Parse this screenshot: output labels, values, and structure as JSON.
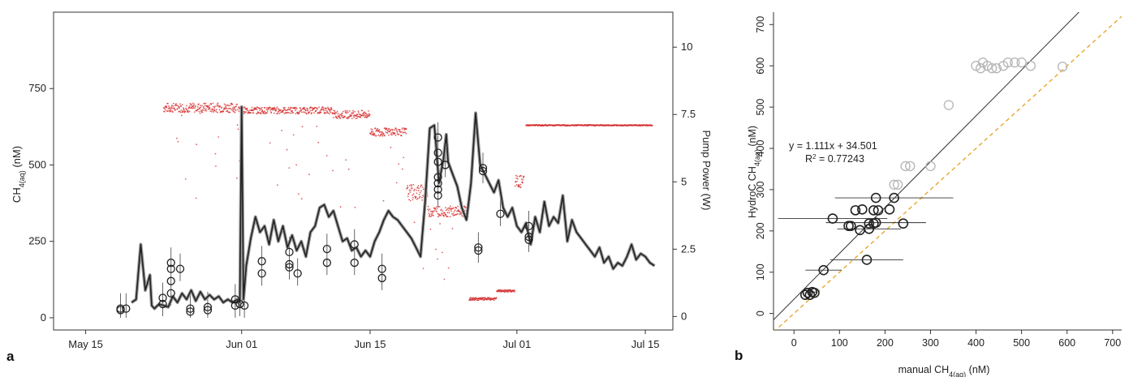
{
  "panel_labels": {
    "a": "a",
    "b": "b"
  },
  "chart_data": [
    {
      "id": "panel-a",
      "type": "line",
      "xlabel": "",
      "ylabel_left_main": "CH",
      "ylabel_left_sub": "4(aq)",
      "ylabel_left_unit": " (nM)",
      "ylabel_right": "Pump Power (W)",
      "x_ticks": [
        "May 15",
        "Jun 01",
        "Jun 15",
        "Jul 01",
        "Jul 15"
      ],
      "x_tick_days": [
        0,
        17,
        31,
        47,
        61
      ],
      "xlim_days": [
        -3.5,
        64
      ],
      "y_left_ticks": [
        "0",
        "250",
        "500",
        "750"
      ],
      "y_left_tick_values": [
        0,
        250,
        500,
        750
      ],
      "ylim_left": [
        -40,
        1000
      ],
      "y_right_ticks": [
        "0",
        "2.5",
        "5",
        "7.5",
        "10"
      ],
      "y_right_tick_values": [
        0,
        2.5,
        5,
        7.5,
        10
      ],
      "ylim_right": [
        -0.5,
        11.3
      ],
      "colors": {
        "hydroc": "#222222",
        "pump": "#d62a2a",
        "manual": "#222222"
      },
      "series": [
        {
          "key": "hydroc",
          "x": [
            5,
            5.5,
            6,
            6.5,
            7,
            7.2,
            7.5,
            8,
            8.5,
            9,
            9.5,
            10,
            10.5,
            11,
            11.5,
            12,
            12.5,
            13,
            13.5,
            14,
            14.5,
            15,
            15.5,
            16,
            16.5,
            16.8,
            17,
            17.2,
            17.5,
            18,
            18.5,
            19,
            19.5,
            20,
            20.5,
            21,
            21.5,
            22,
            22.5,
            23,
            23.5,
            24,
            24.5,
            25,
            25.5,
            26,
            26.5,
            27,
            27.5,
            28,
            28.5,
            29,
            29.5,
            30,
            30.5,
            31,
            31.5,
            32,
            32.5,
            33,
            33.5,
            34,
            34.5,
            35,
            35.5,
            36,
            36.5,
            37,
            37.5,
            38,
            38.2,
            38.5,
            39,
            39.3,
            39.5,
            40,
            40.5,
            41,
            41.5,
            42,
            42.5,
            43,
            43.5,
            44,
            44.5,
            45,
            45.5,
            46,
            46.5,
            47,
            47.5,
            48,
            48.5,
            49,
            49.5,
            50,
            50.5,
            51,
            51.5,
            52,
            52.5,
            53,
            53.5,
            54,
            54.5,
            55,
            55.5,
            56,
            56.5,
            57,
            57.5,
            58,
            58.5,
            59,
            59.5,
            60,
            60.5,
            61,
            61.5,
            62
          ],
          "y": [
            50,
            60,
            240,
            90,
            140,
            40,
            30,
            45,
            40,
            35,
            70,
            50,
            80,
            60,
            90,
            55,
            85,
            60,
            75,
            60,
            70,
            50,
            60,
            50,
            60,
            50,
            690,
            60,
            170,
            260,
            330,
            280,
            300,
            240,
            320,
            250,
            300,
            230,
            270,
            220,
            250,
            200,
            280,
            300,
            360,
            370,
            330,
            350,
            300,
            250,
            260,
            220,
            230,
            200,
            220,
            200,
            250,
            280,
            320,
            350,
            330,
            320,
            300,
            280,
            260,
            230,
            200,
            380,
            620,
            630,
            560,
            440,
            520,
            600,
            510,
            470,
            430,
            360,
            320,
            440,
            670,
            500,
            470,
            440,
            410,
            450,
            360,
            330,
            360,
            300,
            280,
            310,
            240,
            330,
            280,
            380,
            300,
            330,
            310,
            400,
            250,
            320,
            280,
            260,
            240,
            220,
            200,
            230,
            180,
            200,
            160,
            180,
            170,
            200,
            240,
            190,
            210,
            200,
            180,
            170
          ],
          "name": ""
        }
      ],
      "manual_points": [
        {
          "x": 3.8,
          "y": [
            25,
            30
          ]
        },
        {
          "x": 4.4,
          "y": [
            30
          ]
        },
        {
          "x": 8.4,
          "y": [
            45,
            65
          ]
        },
        {
          "x": 9.3,
          "y": [
            80,
            120,
            160,
            180
          ]
        },
        {
          "x": 10.3,
          "y": [
            160
          ]
        },
        {
          "x": 11.4,
          "y": [
            20,
            30
          ]
        },
        {
          "x": 13.3,
          "y": [
            25,
            35
          ]
        },
        {
          "x": 16.3,
          "y": [
            40,
            60
          ]
        },
        {
          "x": 16.8,
          "y": [
            45
          ]
        },
        {
          "x": 17.3,
          "y": [
            40
          ]
        },
        {
          "x": 19.2,
          "y": [
            145,
            185
          ]
        },
        {
          "x": 22.2,
          "y": [
            165,
            175,
            215
          ]
        },
        {
          "x": 23.1,
          "y": [
            145
          ]
        },
        {
          "x": 26.3,
          "y": [
            180,
            225
          ]
        },
        {
          "x": 29.3,
          "y": [
            180,
            240
          ]
        },
        {
          "x": 32.3,
          "y": [
            130,
            160
          ]
        },
        {
          "x": 38.4,
          "y": [
            400,
            420,
            440,
            460,
            510,
            540,
            590
          ]
        },
        {
          "x": 39.2,
          "y": [
            500
          ]
        },
        {
          "x": 42.8,
          "y": [
            220,
            230
          ]
        },
        {
          "x": 43.3,
          "y": [
            480,
            490
          ]
        },
        {
          "x": 45.2,
          "y": [
            340
          ]
        },
        {
          "x": 48.3,
          "y": [
            255,
            265,
            300
          ]
        }
      ]
    },
    {
      "id": "panel-b",
      "type": "scatter",
      "xlabel_main": "manual CH",
      "xlabel_sub": "4(aq)",
      "xlabel_unit": " (nM)",
      "ylabel_main": "HydroC CH",
      "ylabel_sub": "4(aq)",
      "ylabel_unit": " (nM)",
      "x_ticks": [
        "0",
        "100",
        "200",
        "300",
        "400",
        "500",
        "600",
        "700"
      ],
      "x_tick_values": [
        0,
        100,
        200,
        300,
        400,
        500,
        600,
        700
      ],
      "xlim": [
        -45,
        720
      ],
      "y_ticks": [
        "0",
        "100",
        "200",
        "300",
        "400",
        "500",
        "600",
        "700"
      ],
      "y_tick_values": [
        0,
        100,
        200,
        300,
        400,
        500,
        600,
        700
      ],
      "ylim": [
        -40,
        730
      ],
      "fit_line": {
        "slope": 1.111,
        "intercept": 34.501
      },
      "one_to_one_line": {
        "slope": 1,
        "intercept": 0
      },
      "annotation_line1": "y = 1.111x  + 34.501",
      "annotation_r2_prefix": "R",
      "annotation_r2_sup": "2",
      "annotation_r2_value": " = 0.77243",
      "colors": {
        "points": "#222222",
        "excluded": "#b8b8b8",
        "fit": "#333333",
        "one_to_one": "#e8a630"
      },
      "points": [
        {
          "x": 25,
          "y": 45,
          "err": 0
        },
        {
          "x": 30,
          "y": 50,
          "err": 0
        },
        {
          "x": 35,
          "y": 45,
          "err": 0
        },
        {
          "x": 40,
          "y": 52,
          "err": 10
        },
        {
          "x": 45,
          "y": 50,
          "err": 0
        },
        {
          "x": 65,
          "y": 105,
          "err": 40
        },
        {
          "x": 85,
          "y": 230,
          "err": 120
        },
        {
          "x": 120,
          "y": 212,
          "err": 0
        },
        {
          "x": 125,
          "y": 212,
          "err": 0
        },
        {
          "x": 135,
          "y": 250,
          "err": 0
        },
        {
          "x": 150,
          "y": 252,
          "err": 0
        },
        {
          "x": 145,
          "y": 202,
          "err": 0
        },
        {
          "x": 160,
          "y": 130,
          "err": 80
        },
        {
          "x": 165,
          "y": 218,
          "err": 0
        },
        {
          "x": 165,
          "y": 205,
          "err": 70
        },
        {
          "x": 175,
          "y": 218,
          "err": 0
        },
        {
          "x": 180,
          "y": 220,
          "err": 110
        },
        {
          "x": 175,
          "y": 250,
          "err": 0
        },
        {
          "x": 180,
          "y": 280,
          "err": 0
        },
        {
          "x": 185,
          "y": 250,
          "err": 0
        },
        {
          "x": 210,
          "y": 252,
          "err": 0
        },
        {
          "x": 220,
          "y": 280,
          "err": 130
        },
        {
          "x": 240,
          "y": 218,
          "err": 0
        }
      ],
      "excluded_points": [
        {
          "x": 220,
          "y": 312
        },
        {
          "x": 228,
          "y": 312
        },
        {
          "x": 245,
          "y": 357
        },
        {
          "x": 255,
          "y": 357
        },
        {
          "x": 300,
          "y": 357
        },
        {
          "x": 340,
          "y": 505
        },
        {
          "x": 400,
          "y": 600
        },
        {
          "x": 410,
          "y": 594
        },
        {
          "x": 415,
          "y": 608
        },
        {
          "x": 425,
          "y": 600
        },
        {
          "x": 435,
          "y": 594
        },
        {
          "x": 445,
          "y": 594
        },
        {
          "x": 460,
          "y": 600
        },
        {
          "x": 470,
          "y": 608
        },
        {
          "x": 485,
          "y": 608
        },
        {
          "x": 500,
          "y": 608
        },
        {
          "x": 520,
          "y": 600
        },
        {
          "x": 590,
          "y": 598
        }
      ]
    }
  ]
}
